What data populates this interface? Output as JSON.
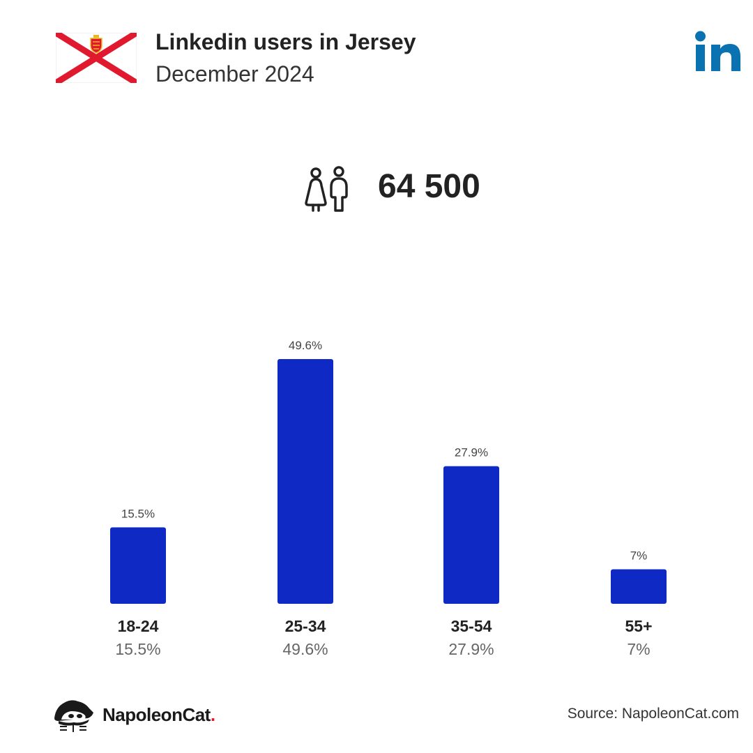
{
  "header": {
    "title": "Linkedin users in Jersey",
    "subtitle": "December 2024"
  },
  "summary": {
    "total_users": "64 500"
  },
  "colors": {
    "bar": "#0f2ac4",
    "linkedin_blue": "#0a72b1",
    "flag_red": "#e0192e",
    "brand_dot": "#e0192e"
  },
  "icons": {
    "flag": "jersey-flag-icon",
    "linkedin": "linkedin-logo-icon",
    "users": "users-icon",
    "brand": "napoleoncat-logo-icon"
  },
  "chart_data": {
    "type": "bar",
    "categories": [
      "18-24",
      "25-34",
      "35-54",
      "55+"
    ],
    "values": [
      15.5,
      49.6,
      27.9,
      7
    ],
    "value_labels": [
      "15.5%",
      "49.6%",
      "27.9%",
      "7%"
    ],
    "unit": "%",
    "ylim": [
      0,
      49.6
    ],
    "grid": false
  },
  "footer": {
    "brand_name": "NapoleonCat",
    "brand_dot": ".",
    "source": "Source: NapoleonCat.com"
  }
}
